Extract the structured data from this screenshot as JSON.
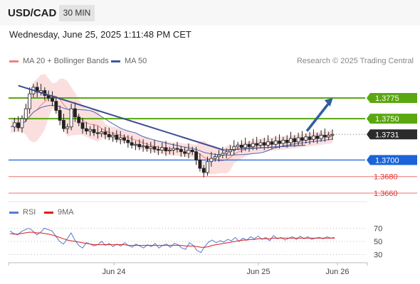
{
  "header": {
    "pair": "USD/CAD",
    "timeframe": "30 MIN"
  },
  "timestamp": "Wednesday, June 25, 2025 1:11:48 PM CET",
  "credit": "Research © 2025 Trading Central",
  "colors": {
    "green": "#5aa70f",
    "blue": "#1a64d8",
    "red": "#f07070",
    "trend": "#3a4c90",
    "band": "#fbdcdc",
    "ma20": "#f08080",
    "ma50": "#4a68b0",
    "price_tag": "#2b2b2b"
  },
  "chart_data": [
    {
      "type": "line",
      "title": "",
      "legend": [
        {
          "name": "MA 20 + Bollinger Bands",
          "color": "#f08080"
        },
        {
          "name": "MA 50",
          "color": "#3a5aa0"
        }
      ],
      "legend_position": "top-left",
      "ylim": [
        1.3645,
        1.3808
      ],
      "x_tick_labels": [
        "Jun 24",
        "Jun 25",
        "Jun 26"
      ],
      "levels": [
        {
          "value": 1.3775,
          "label": "1.3775",
          "kind": "resistance",
          "color": "#5aa70f"
        },
        {
          "value": 1.375,
          "label": "1.3750",
          "kind": "resistance",
          "color": "#5aa70f"
        },
        {
          "value": 1.3731,
          "label": "1.3731",
          "kind": "last price",
          "color": "#2b2b2b"
        },
        {
          "value": 1.37,
          "label": "1.3700",
          "kind": "pivot",
          "color": "#1a64d8"
        },
        {
          "value": 1.368,
          "label": "1.3680",
          "kind": "support",
          "color": "#f07070"
        },
        {
          "value": 1.366,
          "label": "1.3660",
          "kind": "support",
          "color": "#f07070"
        }
      ],
      "close_path": [
        1.374,
        1.3745,
        1.3739,
        1.375,
        1.3762,
        1.378,
        1.3788,
        1.3782,
        1.3784,
        1.3778,
        1.3775,
        1.3771,
        1.376,
        1.3748,
        1.3738,
        1.374,
        1.3762,
        1.3752,
        1.3745,
        1.3738,
        1.3735,
        1.3737,
        1.3733,
        1.3732,
        1.3734,
        1.3731,
        1.3728,
        1.373,
        1.3725,
        1.3727,
        1.3724,
        1.3721,
        1.3718,
        1.3719,
        1.3716,
        1.3717,
        1.3714,
        1.3716,
        1.3713,
        1.3712,
        1.3715,
        1.3711,
        1.3712,
        1.3714,
        1.3713,
        1.371,
        1.3708,
        1.3712,
        1.371,
        1.37,
        1.369,
        1.3685,
        1.3698,
        1.3702,
        1.3704,
        1.3706,
        1.3708,
        1.371,
        1.3712,
        1.3716,
        1.3718,
        1.3715,
        1.3719,
        1.3716,
        1.372,
        1.3718,
        1.3721,
        1.3718,
        1.3722,
        1.3719,
        1.3723,
        1.372,
        1.3724,
        1.3721,
        1.3726,
        1.3722,
        1.3727,
        1.3724,
        1.3728,
        1.3725,
        1.3729,
        1.3726,
        1.373,
        1.3728,
        1.373,
        1.3731
      ],
      "trendlines": [
        {
          "from": [
            0.03,
            1.379
          ],
          "to": [
            0.66,
            1.3712
          ],
          "color": "#3a4c90"
        },
        {
          "from": [
            0.66,
            1.3712
          ],
          "to": [
            0.91,
            1.3718
          ],
          "color": "#3a4c90"
        }
      ],
      "forecast_arrow": {
        "from": [
          0.915,
          1.3735
        ],
        "to": [
          0.995,
          1.3775
        ],
        "color": "#2f5fa0"
      }
    },
    {
      "type": "line",
      "title": "",
      "legend": [
        {
          "name": "RSI",
          "color": "#5a7ad0"
        },
        {
          "name": "9MA",
          "color": "#d81d1d"
        }
      ],
      "legend_position": "top-left",
      "ylim": [
        20,
        80
      ],
      "y_tick_labels": [
        "70",
        "50",
        "30"
      ],
      "y_ticks": [
        70,
        50,
        30
      ],
      "series": [
        {
          "name": "RSI",
          "values": [
            66,
            62,
            60,
            65,
            68,
            70,
            66,
            60,
            64,
            70,
            68,
            66,
            58,
            50,
            46,
            54,
            63,
            52,
            44,
            40,
            48,
            46,
            43,
            45,
            50,
            44,
            47,
            42,
            46,
            43,
            48,
            44,
            41,
            46,
            43,
            40,
            45,
            42,
            47,
            40,
            44,
            46,
            41,
            47,
            45,
            40,
            38,
            48,
            44,
            36,
            33,
            42,
            49,
            52,
            48,
            51,
            49,
            53,
            51,
            56,
            50,
            55,
            52,
            57,
            54,
            58,
            53,
            56,
            51,
            59,
            54,
            56,
            52,
            55,
            57,
            53,
            58,
            54,
            57,
            53,
            55,
            56,
            54,
            57,
            55,
            56
          ]
        },
        {
          "name": "9MA",
          "values": [
            62,
            61,
            61,
            62,
            63,
            64,
            64,
            63,
            63,
            62,
            61,
            60,
            58,
            56,
            54,
            52,
            51,
            50,
            49,
            48,
            47,
            46,
            45,
            45,
            45,
            45,
            45,
            45,
            45,
            45,
            45,
            44,
            44,
            44,
            44,
            44,
            44,
            44,
            44,
            44,
            44,
            44,
            44,
            44,
            44,
            44,
            43,
            43,
            43,
            42,
            41,
            41,
            42,
            44,
            45,
            46,
            47,
            48,
            49,
            50,
            51,
            52,
            52,
            53,
            53,
            54,
            54,
            54,
            54,
            55,
            55,
            55,
            55,
            55,
            55,
            55,
            55,
            55,
            55,
            55,
            55,
            55,
            55,
            55,
            55,
            55
          ]
        }
      ]
    }
  ]
}
